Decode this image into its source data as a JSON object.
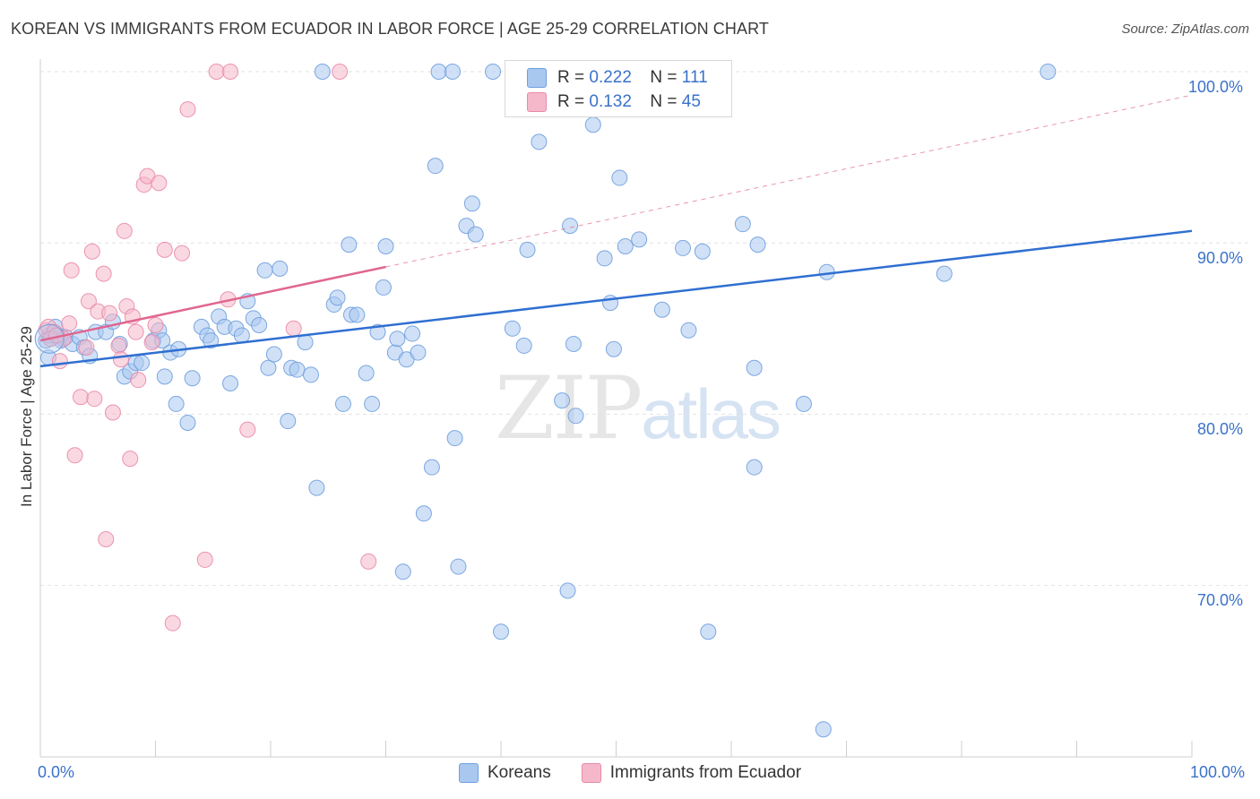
{
  "title": "KOREAN VS IMMIGRANTS FROM ECUADOR IN LABOR FORCE | AGE 25-29 CORRELATION CHART",
  "source": "Source: ZipAtlas.com",
  "watermark": {
    "zip": "ZIP",
    "atlas": "atlas"
  },
  "legend_top": {
    "rows": [
      {
        "r_label": "R =",
        "r_value": "0.222",
        "n_label": "N =",
        "n_value": "111"
      },
      {
        "r_label": "R =",
        "r_value": "0.132",
        "n_label": "N =",
        "n_value": "45"
      }
    ]
  },
  "legend_bottom": [
    "Koreans",
    "Immigrants from Ecuador"
  ],
  "colors": {
    "korean_fill": "#a9c8f0",
    "korean_stroke": "#6f9fde",
    "korean_line": "#2f6fd1",
    "ecuador_fill": "#f5b8cb",
    "ecuador_stroke": "#e98aa8",
    "ecuador_line": "#e0668f",
    "tick_text": "#3a72c9",
    "grid": "#e2e2e2"
  },
  "chart_data": {
    "type": "scatter",
    "title": "KOREAN VS IMMIGRANTS FROM ECUADOR IN LABOR FORCE | AGE 25-29 CORRELATION CHART",
    "xlabel": "",
    "ylabel": "In Labor Force | Age 25-29",
    "xlim": [
      0,
      100
    ],
    "ylim": [
      60.5,
      102.5
    ],
    "x_tick_labels": [
      "0.0%",
      "100.0%"
    ],
    "y_ticks": [
      70,
      80,
      90,
      100
    ],
    "y_tick_labels": [
      "70.0%",
      "80.0%",
      "90.0%",
      "100.0%"
    ],
    "grid": true,
    "legend_position": "top-center",
    "series": [
      {
        "name": "Koreans",
        "r": 0.222,
        "n": 111,
        "trend": {
          "x": [
            0,
            100
          ],
          "y": [
            82.8,
            90.7
          ]
        },
        "points": [
          [
            0.5,
            84.3
          ],
          [
            0.7,
            83.3
          ],
          [
            0.8,
            84.6
          ],
          [
            1.3,
            85.1
          ],
          [
            1.5,
            84.6
          ],
          [
            1.8,
            84.3
          ],
          [
            2.2,
            84.5
          ],
          [
            2.8,
            84.1
          ],
          [
            3.4,
            84.5
          ],
          [
            3.8,
            83.9
          ],
          [
            4.3,
            83.4
          ],
          [
            4.8,
            84.8
          ],
          [
            5.7,
            84.8
          ],
          [
            6.3,
            85.4
          ],
          [
            6.9,
            84.1
          ],
          [
            7.3,
            82.2
          ],
          [
            7.8,
            82.5
          ],
          [
            8.3,
            83.0
          ],
          [
            8.8,
            83.0
          ],
          [
            9.8,
            84.3
          ],
          [
            10.3,
            84.9
          ],
          [
            10.6,
            84.3
          ],
          [
            10.8,
            82.2
          ],
          [
            11.3,
            83.6
          ],
          [
            11.8,
            80.6
          ],
          [
            12.0,
            83.8
          ],
          [
            12.8,
            79.5
          ],
          [
            13.2,
            82.1
          ],
          [
            14.0,
            85.1
          ],
          [
            14.5,
            84.6
          ],
          [
            14.8,
            84.3
          ],
          [
            15.5,
            85.7
          ],
          [
            16.0,
            85.1
          ],
          [
            16.5,
            81.8
          ],
          [
            17.0,
            85.0
          ],
          [
            17.5,
            84.6
          ],
          [
            18.0,
            86.6
          ],
          [
            18.5,
            85.6
          ],
          [
            19.0,
            85.2
          ],
          [
            19.5,
            88.4
          ],
          [
            19.8,
            82.7
          ],
          [
            20.3,
            83.5
          ],
          [
            20.8,
            88.5
          ],
          [
            21.5,
            79.6
          ],
          [
            21.8,
            82.7
          ],
          [
            22.3,
            82.6
          ],
          [
            23.0,
            84.2
          ],
          [
            23.5,
            82.3
          ],
          [
            24.0,
            75.7
          ],
          [
            24.5,
            100.0
          ],
          [
            25.5,
            86.4
          ],
          [
            25.8,
            86.8
          ],
          [
            26.3,
            80.6
          ],
          [
            26.8,
            89.9
          ],
          [
            27.0,
            85.8
          ],
          [
            27.5,
            85.8
          ],
          [
            28.3,
            82.4
          ],
          [
            28.8,
            80.6
          ],
          [
            29.3,
            84.8
          ],
          [
            29.8,
            87.4
          ],
          [
            30.0,
            89.8
          ],
          [
            30.8,
            83.6
          ],
          [
            31.0,
            84.4
          ],
          [
            31.5,
            70.8
          ],
          [
            31.8,
            83.2
          ],
          [
            32.3,
            84.7
          ],
          [
            32.8,
            83.6
          ],
          [
            33.3,
            74.2
          ],
          [
            34.0,
            76.9
          ],
          [
            34.3,
            94.5
          ],
          [
            34.6,
            100.0
          ],
          [
            35.8,
            100.0
          ],
          [
            36.0,
            78.6
          ],
          [
            36.3,
            71.1
          ],
          [
            37.0,
            91.0
          ],
          [
            37.5,
            92.3
          ],
          [
            37.8,
            90.5
          ],
          [
            39.3,
            100.0
          ],
          [
            40.0,
            67.3
          ],
          [
            41.0,
            85.0
          ],
          [
            42.0,
            84.0
          ],
          [
            42.3,
            89.6
          ],
          [
            43.3,
            95.9
          ],
          [
            45.3,
            80.8
          ],
          [
            45.8,
            69.7
          ],
          [
            46.0,
            91.0
          ],
          [
            46.3,
            84.1
          ],
          [
            46.5,
            79.9
          ],
          [
            48.0,
            96.9
          ],
          [
            48.3,
            100.0
          ],
          [
            49.0,
            89.1
          ],
          [
            49.5,
            86.5
          ],
          [
            49.8,
            83.8
          ],
          [
            50.3,
            93.8
          ],
          [
            50.8,
            89.8
          ],
          [
            52.0,
            90.2
          ],
          [
            54.0,
            86.1
          ],
          [
            55.8,
            89.7
          ],
          [
            56.3,
            84.9
          ],
          [
            57.5,
            89.5
          ],
          [
            58.0,
            67.3
          ],
          [
            59.3,
            100.0
          ],
          [
            61.0,
            91.1
          ],
          [
            62.0,
            82.7
          ],
          [
            62.0,
            76.9
          ],
          [
            62.3,
            89.9
          ],
          [
            66.3,
            80.6
          ],
          [
            68.3,
            88.3
          ],
          [
            78.5,
            88.2
          ],
          [
            87.5,
            100.0
          ],
          [
            68.0,
            61.6
          ]
        ]
      },
      {
        "name": "Immigrants from Ecuador",
        "r": 0.132,
        "n": 45,
        "trend": {
          "x": [
            0,
            30
          ],
          "y": [
            84.3,
            88.6
          ]
        },
        "points": [
          [
            0.5,
            84.9
          ],
          [
            0.7,
            85.1
          ],
          [
            1.2,
            84.8
          ],
          [
            1.7,
            83.1
          ],
          [
            2.0,
            84.4
          ],
          [
            2.5,
            85.3
          ],
          [
            2.7,
            88.4
          ],
          [
            3.0,
            77.6
          ],
          [
            3.5,
            81.0
          ],
          [
            4.0,
            83.9
          ],
          [
            4.2,
            86.6
          ],
          [
            4.5,
            89.5
          ],
          [
            4.7,
            80.9
          ],
          [
            5.0,
            86.0
          ],
          [
            5.5,
            88.2
          ],
          [
            5.7,
            72.7
          ],
          [
            6.0,
            85.9
          ],
          [
            6.3,
            80.1
          ],
          [
            6.8,
            84.0
          ],
          [
            7.0,
            83.2
          ],
          [
            7.3,
            90.7
          ],
          [
            7.5,
            86.3
          ],
          [
            7.8,
            77.4
          ],
          [
            8.0,
            85.7
          ],
          [
            8.3,
            84.8
          ],
          [
            8.5,
            82.0
          ],
          [
            9.0,
            93.4
          ],
          [
            9.3,
            93.9
          ],
          [
            9.7,
            84.2
          ],
          [
            10.0,
            85.2
          ],
          [
            10.3,
            93.5
          ],
          [
            10.8,
            89.6
          ],
          [
            11.5,
            67.8
          ],
          [
            12.3,
            89.4
          ],
          [
            12.8,
            97.8
          ],
          [
            14.3,
            71.5
          ],
          [
            15.3,
            100.0
          ],
          [
            16.3,
            86.7
          ],
          [
            16.5,
            100.0
          ],
          [
            18.0,
            79.1
          ],
          [
            22.0,
            85.0
          ],
          [
            26.0,
            100.0
          ],
          [
            28.5,
            71.4
          ],
          [
            0.9,
            84.4
          ],
          [
            1.4,
            84.6
          ]
        ]
      }
    ]
  }
}
